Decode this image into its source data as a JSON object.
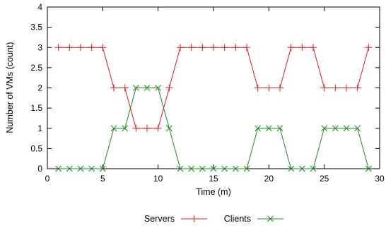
{
  "chart_data": {
    "type": "line",
    "title": "",
    "xlabel": "Time (m)",
    "ylabel": "Number of VMs (count)",
    "xlim": [
      0,
      30
    ],
    "ylim": [
      0,
      4
    ],
    "xticks": [
      0,
      5,
      10,
      15,
      20,
      25,
      30
    ],
    "yticks": [
      0,
      0.5,
      1,
      1.5,
      2,
      2.5,
      3,
      3.5,
      4
    ],
    "xtick_labels": [
      "0",
      "5",
      "10",
      "15",
      "20",
      "25",
      "30"
    ],
    "ytick_labels": [
      "0",
      "0.5",
      "1",
      "1.5",
      "2",
      "2.5",
      "3",
      "3.5",
      "4"
    ],
    "grid": false,
    "legend_position": "bottom-center",
    "x": [
      1,
      2,
      3,
      4,
      5,
      6,
      7,
      8,
      9,
      10,
      11,
      12,
      13,
      14,
      15,
      16,
      17,
      18,
      19,
      20,
      21,
      22,
      23,
      24,
      25,
      26,
      27,
      28,
      29
    ],
    "series": [
      {
        "name": "Servers",
        "marker": "plus",
        "color": "#e41a1c",
        "values": [
          3,
          3,
          3,
          3,
          3,
          2,
          2,
          1,
          1,
          1,
          2,
          3,
          3,
          3,
          3,
          3,
          3,
          3,
          2,
          2,
          2,
          3,
          3,
          3,
          2,
          2,
          2,
          2,
          3
        ]
      },
      {
        "name": "Clients",
        "marker": "cross",
        "color": "#1e8a1e",
        "values": [
          0,
          0,
          0,
          0,
          0,
          1,
          1,
          2,
          2,
          2,
          1,
          0,
          0,
          0,
          0,
          0,
          0,
          0,
          1,
          1,
          1,
          0,
          0,
          0,
          1,
          1,
          1,
          1,
          0
        ]
      }
    ]
  }
}
